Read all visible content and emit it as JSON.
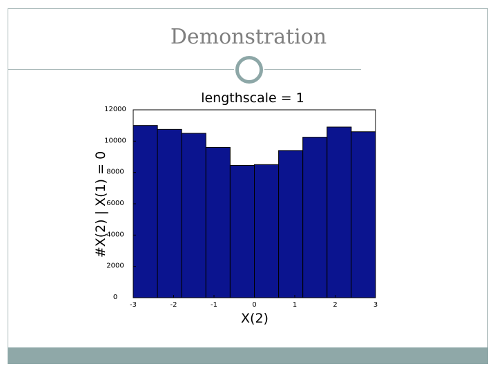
{
  "slide": {
    "title": "Demonstration",
    "frame_color": "#a8b8b8",
    "accent_color": "#8fa8a8",
    "ornament": "circle-ornament"
  },
  "chart_data": {
    "type": "bar",
    "title": "lengthscale = 1",
    "xlabel": "X(2)",
    "ylabel": "#X(2) | X(1) = 0",
    "xlim": [
      -3,
      3
    ],
    "ylim": [
      0,
      12000
    ],
    "xticks": [
      -3,
      -2,
      -1,
      0,
      1,
      2,
      3
    ],
    "yticks": [
      0,
      2000,
      4000,
      6000,
      8000,
      10000,
      12000
    ],
    "xtick_labels": [
      "-3",
      "-2",
      "-1",
      "0",
      "1",
      "2",
      "3"
    ],
    "ytick_labels": [
      "0",
      "2000",
      "4000",
      "6000",
      "8000",
      "10000",
      "12000"
    ],
    "bin_edges": [
      -3.0,
      -2.4,
      -1.8,
      -1.2,
      -0.6,
      0.0,
      0.6,
      1.2,
      1.8,
      2.4,
      3.0
    ],
    "values": [
      11000,
      10750,
      10500,
      9600,
      8450,
      8500,
      9400,
      10250,
      10900,
      10600
    ],
    "bar_color": "#0b148f",
    "bar_edge_color": "#000000",
    "grid": false
  }
}
